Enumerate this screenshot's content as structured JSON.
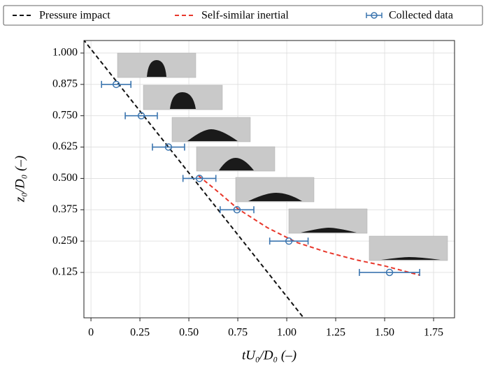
{
  "chart_data": {
    "type": "scatter",
    "xlabel": "tU₀/D₀ (–)",
    "ylabel": "z₀/D₀ (–)",
    "xlim": [
      -0.036,
      1.857
    ],
    "ylim": [
      -0.056,
      1.05
    ],
    "xticks": [
      0,
      0.25,
      {
        "value": 0.5,
        "label": "0.50"
      },
      0.75,
      {
        "value": 1,
        "label": "1.00"
      },
      1.25,
      {
        "value": 1.5,
        "label": "1.50"
      },
      1.75
    ],
    "yticks": [
      {
        "value": 0.125,
        "label": "0.125"
      },
      {
        "value": 0.25,
        "label": "0.250"
      },
      {
        "value": 0.375,
        "label": "0.375"
      },
      {
        "value": 0.5,
        "label": "0.500"
      },
      {
        "value": 0.625,
        "label": "0.625"
      },
      {
        "value": 0.75,
        "label": "0.750"
      },
      {
        "value": 0.875,
        "label": "0.875"
      },
      {
        "value": 1,
        "label": "1.000"
      }
    ],
    "grid": true,
    "series": [
      {
        "name": "Pressure impact",
        "type": "line",
        "dash": "dashed",
        "color": "#111111",
        "x": [
          -0.04,
          1.09
        ],
        "values": [
          1.055,
          -0.06
        ]
      },
      {
        "name": "Self-similar inertial",
        "type": "line",
        "dash": "dashed",
        "color": "#e8372b",
        "x": [
          0.55,
          0.65,
          0.75,
          0.9,
          1.05,
          1.2,
          1.35,
          1.5,
          1.68
        ],
        "values": [
          0.51,
          0.446,
          0.379,
          0.304,
          0.245,
          0.207,
          0.176,
          0.151,
          0.114
        ]
      },
      {
        "name": "Collected data",
        "type": "errorbar",
        "color": "#3b75af",
        "x": [
          0.129,
          0.257,
          0.396,
          0.554,
          0.746,
          1.011,
          1.525
        ],
        "values": [
          0.875,
          0.75,
          0.625,
          0.5,
          0.375,
          0.25,
          0.125
        ],
        "xerr": [
          0.075,
          0.082,
          0.082,
          0.084,
          0.086,
          0.098,
          0.154
        ]
      }
    ]
  }
}
